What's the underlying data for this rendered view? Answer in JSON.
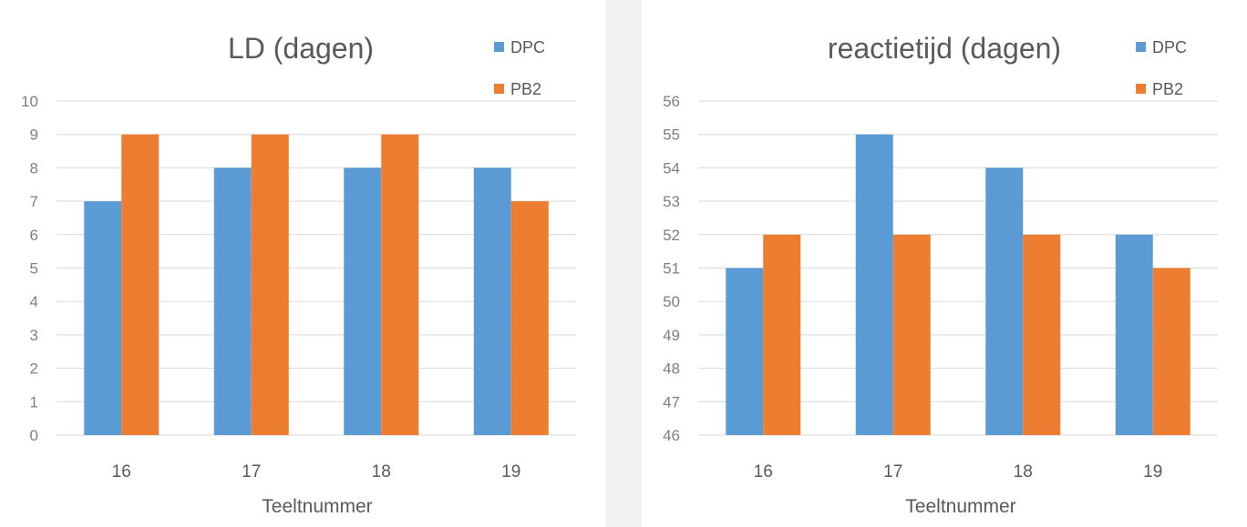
{
  "colors": {
    "DPC": "#5b9bd5",
    "PB2": "#ed7d31",
    "grid": "#d9d9d9",
    "text": "#595959"
  },
  "chart_data": [
    {
      "type": "bar",
      "title": "LD (dagen)",
      "xlabel": "Teeltnummer",
      "ylabel": "",
      "categories": [
        "16",
        "17",
        "18",
        "19"
      ],
      "ylim": [
        0,
        10
      ],
      "yticks": [
        "0",
        "1",
        "2",
        "3",
        "4",
        "5",
        "6",
        "7",
        "8",
        "9",
        "10"
      ],
      "series": [
        {
          "name": "DPC",
          "values": [
            7,
            8,
            8,
            8
          ]
        },
        {
          "name": "PB2",
          "values": [
            9,
            9,
            9,
            7
          ]
        }
      ],
      "legend": "top-right",
      "grid": true
    },
    {
      "type": "bar",
      "title": "reactietijd (dagen)",
      "xlabel": "Teeltnummer",
      "ylabel": "",
      "categories": [
        "16",
        "17",
        "18",
        "19"
      ],
      "ylim": [
        46,
        56
      ],
      "yticks": [
        "46",
        "47",
        "48",
        "49",
        "50",
        "51",
        "52",
        "53",
        "54",
        "55",
        "56"
      ],
      "series": [
        {
          "name": "DPC",
          "values": [
            51,
            55,
            54,
            52
          ]
        },
        {
          "name": "PB2",
          "values": [
            52,
            52,
            52,
            51
          ]
        }
      ],
      "legend": "top-right",
      "grid": true
    }
  ]
}
